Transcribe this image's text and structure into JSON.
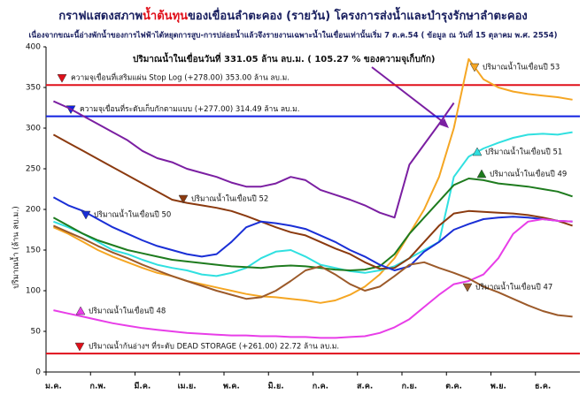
{
  "chart_data": {
    "type": "line",
    "title": [
      "กราฟแสดงสภาพ",
      "น้ำต้นทุน",
      "ของเขื่อนลำตะคอง (รายวัน)   โครงการส่งน้ำและบำรุงรักษาลำตะคอง"
    ],
    "subtitle": "เนื่องจากขณะนี้อ่างพักน้ำของการไฟฟ้าได้หยุดการสูบ-การปล่อยน้ำแล้วจึงรายงานเฉพาะน้ำในเขื่อนเท่านั้นเริ่ม 7 ต.ค.54   ( ข้อมูล ณ วันที่  15  ตุลาคม พ.ศ. 2554)",
    "annotation": "ปริมาณน้ำในเขื่อนวันที่  331.05  ล้าน  ลบ.ม.  ( 105.27 % ของความจุเก็บกัก)",
    "y_label": "ปริมาณน้ำ (ล้าน ลบ.ม.)",
    "categories": [
      "ม.ค.",
      null,
      null,
      "ก.พ.",
      null,
      null,
      "มี.ค.",
      null,
      null,
      "เม.ย.",
      null,
      null,
      "พ.ค.",
      null,
      null,
      "มิ.ย.",
      null,
      null,
      "ก.ค.",
      null,
      null,
      "ส.ค.",
      null,
      null,
      "ก.ย.",
      null,
      null,
      "ต.ค.",
      null,
      null,
      "พ.ย.",
      null,
      null,
      "ธ.ค.",
      null,
      null
    ],
    "ylim": [
      0,
      400
    ],
    "yticks": [
      0,
      50,
      100,
      150,
      200,
      250,
      300,
      350,
      400
    ],
    "reference_lines": [
      {
        "label": "ความจุเขื่อนที่เสริมแผ่น Stop Log (+278.00) 353.00 ล้าน ลบ.ม.",
        "value": 353,
        "color": "#e0101a"
      },
      {
        "label": "ความจุเขื่อนที่ระดับเก็บกักตามแบบ  (+277.00)  314.49  ล้าน ลบ.ม.",
        "value": 314.49,
        "color": "#1020e0"
      },
      {
        "label": "ปริมาณน้ำก้นอ่างฯ ที่ระดับ  DEAD STORAGE  (+261.00)  22.72  ล้าน ลบ.ม.",
        "value": 22.72,
        "color": "#e0101a"
      }
    ],
    "series": [
      {
        "color": "#7b1fa2",
        "values": [
          333,
          325,
          315,
          305,
          295,
          285,
          272,
          263,
          258,
          250,
          245,
          240,
          233,
          228,
          228,
          232,
          240,
          236,
          224,
          218,
          212,
          205,
          196,
          190,
          255,
          280,
          305,
          331,
          null,
          null,
          null,
          null,
          null,
          null,
          null,
          null
        ]
      },
      {
        "name": "ปริมาณน้ำในเขื่อนปี 53",
        "color": "#f5a623",
        "values": [
          178,
          170,
          160,
          150,
          142,
          135,
          128,
          122,
          118,
          112,
          108,
          104,
          100,
          96,
          93,
          92,
          90,
          88,
          85,
          88,
          95,
          105,
          120,
          140,
          170,
          200,
          240,
          300,
          385,
          360,
          350,
          345,
          342,
          340,
          338,
          335
        ]
      },
      {
        "name": "ปริมาณน้ำในเขื่อนปี 51",
        "color": "#30e0e0",
        "values": [
          185,
          178,
          170,
          160,
          150,
          145,
          138,
          132,
          128,
          125,
          120,
          118,
          122,
          128,
          140,
          148,
          150,
          142,
          132,
          128,
          124,
          122,
          125,
          130,
          140,
          150,
          160,
          240,
          265,
          275,
          282,
          288,
          292,
          293,
          292,
          295
        ]
      },
      {
        "name": "ปริมาณน้ำในเขื่อนปี 49",
        "color": "#1e7b1e",
        "values": [
          190,
          180,
          170,
          162,
          156,
          150,
          146,
          142,
          138,
          136,
          134,
          132,
          130,
          129,
          128,
          130,
          131,
          130,
          128,
          126,
          125,
          126,
          130,
          145,
          170,
          190,
          210,
          230,
          238,
          236,
          232,
          230,
          228,
          225,
          222,
          216
        ]
      },
      {
        "name": "ปริมาณน้ำในเขื่อนปี 52",
        "color": "#8b3a0f",
        "values": [
          292,
          282,
          272,
          262,
          252,
          242,
          232,
          222,
          212,
          208,
          205,
          202,
          198,
          192,
          185,
          178,
          172,
          168,
          160,
          152,
          145,
          135,
          127,
          128,
          140,
          160,
          180,
          195,
          198,
          197,
          196,
          195,
          193,
          190,
          186,
          180
        ]
      },
      {
        "name": "ปริมาณน้ำในเขื่อนปี 50",
        "color": "#1a2fd6",
        "values": [
          215,
          205,
          198,
          188,
          178,
          170,
          162,
          155,
          150,
          145,
          142,
          145,
          160,
          178,
          185,
          183,
          180,
          176,
          168,
          160,
          150,
          142,
          132,
          125,
          130,
          148,
          160,
          175,
          182,
          188,
          190,
          191,
          190,
          188,
          186,
          185
        ]
      },
      {
        "name": "ปริมาณน้ำในเขื่อนปี 48",
        "color": "#e83ee8",
        "values": [
          76,
          72,
          68,
          64,
          60,
          57,
          54,
          52,
          50,
          48,
          47,
          46,
          45,
          45,
          44,
          44,
          43,
          43,
          42,
          42,
          43,
          44,
          48,
          55,
          65,
          80,
          95,
          108,
          112,
          120,
          140,
          170,
          185,
          188,
          186,
          185
        ]
      },
      {
        "name": "ปริมาณน้ำในเขื่อนปี 47",
        "color": "#9c5a2a",
        "values": [
          180,
          172,
          164,
          155,
          147,
          140,
          132,
          125,
          118,
          112,
          106,
          100,
          95,
          90,
          92,
          100,
          112,
          125,
          130,
          120,
          108,
          100,
          105,
          118,
          132,
          135,
          128,
          122,
          115,
          105,
          98,
          90,
          82,
          75,
          70,
          68
        ]
      }
    ]
  }
}
